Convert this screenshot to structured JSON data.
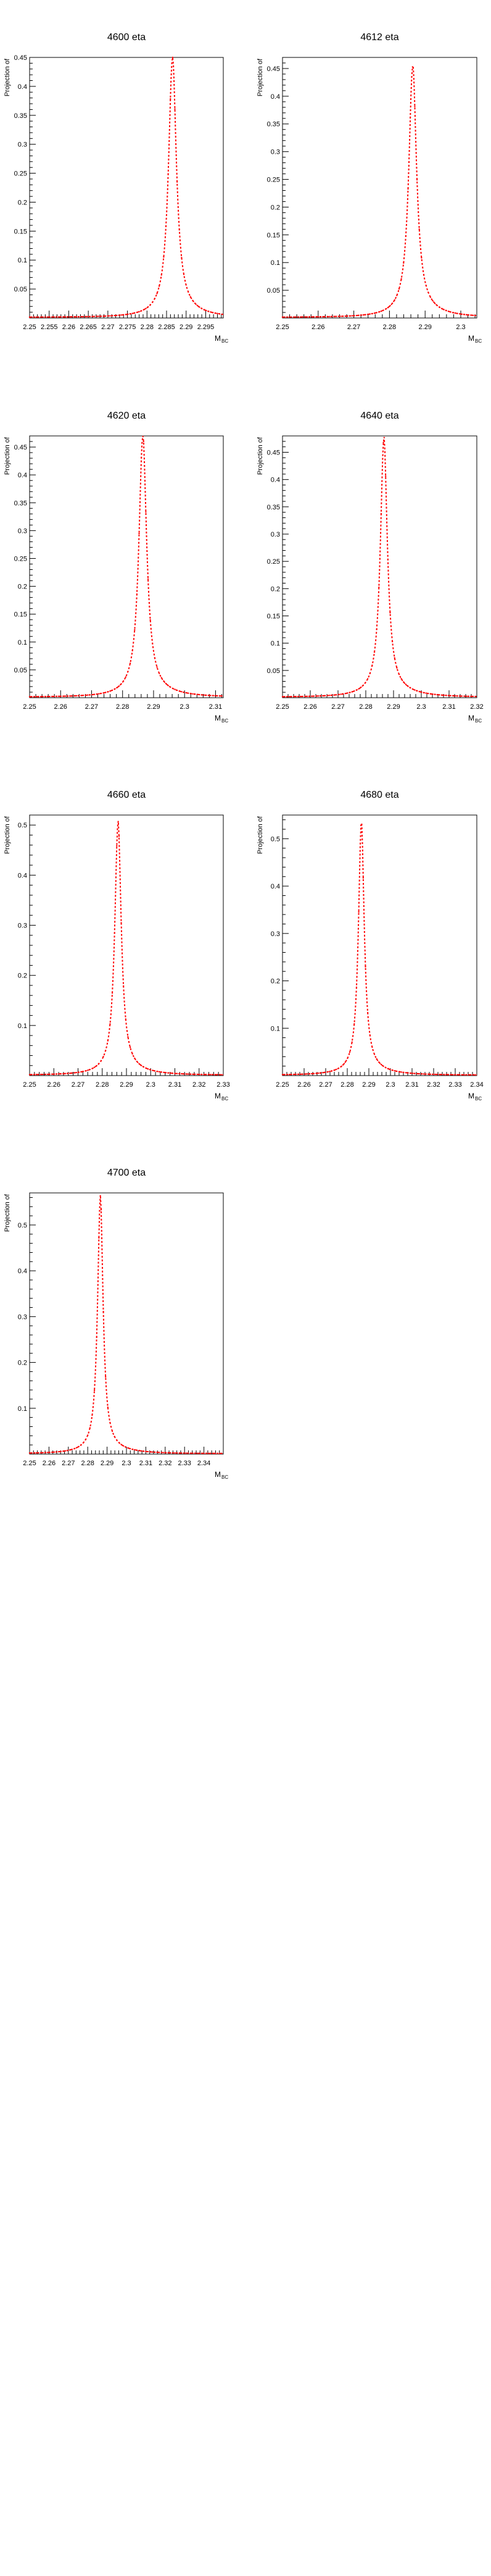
{
  "style": {
    "curve_color": "#ff0000",
    "axis_color": "#000000"
  },
  "chart_data": [
    {
      "type": "line",
      "title": "4600 eta",
      "ylabel": "Projection of",
      "xlabel": "M",
      "xlabel_sub": "BC",
      "xlim": [
        2.25,
        2.2995
      ],
      "ylim": [
        0,
        0.45
      ],
      "xticks": [
        2.25,
        2.255,
        2.26,
        2.265,
        2.27,
        2.275,
        2.28,
        2.285,
        2.29,
        2.295
      ],
      "xtick_labels": [
        "2.25",
        "2.255",
        "2.26",
        "2.265",
        "2.27",
        "2.275",
        "2.28",
        "2.285",
        "2.29",
        "2.295"
      ],
      "yticks": [
        0.05,
        0.1,
        0.15,
        0.2,
        0.25,
        0.3,
        0.35,
        0.4,
        0.45
      ],
      "ytick_labels": [
        "0.05",
        "0.1",
        "0.15",
        "0.2",
        "0.25",
        "0.3",
        "0.35",
        "0.4",
        "0.45"
      ],
      "series": [
        {
          "peak_x": 2.2865,
          "peak_y": 0.435,
          "width": 0.0012,
          "tail": 0.02,
          "tail_decay": 0.005
        }
      ]
    },
    {
      "type": "line",
      "title": "4612 eta",
      "ylabel": "Projection of",
      "xlabel": "M",
      "xlabel_sub": "BC",
      "xlim": [
        2.25,
        2.3045
      ],
      "ylim": [
        0,
        0.47
      ],
      "xticks": [
        2.25,
        2.26,
        2.27,
        2.28,
        2.29,
        2.3
      ],
      "xtick_labels": [
        "2.25",
        "2.26",
        "2.27",
        "2.28",
        "2.29",
        "2.3"
      ],
      "yticks": [
        0.05,
        0.1,
        0.15,
        0.2,
        0.25,
        0.3,
        0.35,
        0.4,
        0.45
      ],
      "ytick_labels": [
        "0.05",
        "0.1",
        "0.15",
        "0.2",
        "0.25",
        "0.3",
        "0.35",
        "0.4",
        "0.45"
      ],
      "series": [
        {
          "peak_x": 2.2865,
          "peak_y": 0.44,
          "width": 0.0013,
          "tail": 0.02,
          "tail_decay": 0.006
        }
      ]
    },
    {
      "type": "line",
      "title": "4620 eta",
      "ylabel": "Projection of",
      "xlabel": "M",
      "xlabel_sub": "BC",
      "xlim": [
        2.25,
        2.3125
      ],
      "ylim": [
        0,
        0.47
      ],
      "xticks": [
        2.25,
        2.26,
        2.27,
        2.28,
        2.29,
        2.3,
        2.31
      ],
      "xtick_labels": [
        "2.25",
        "2.26",
        "2.27",
        "2.28",
        "2.29",
        "2.3",
        "2.31"
      ],
      "yticks": [
        0.05,
        0.1,
        0.15,
        0.2,
        0.25,
        0.3,
        0.35,
        0.4,
        0.45
      ],
      "ytick_labels": [
        "0.05",
        "0.1",
        "0.15",
        "0.2",
        "0.25",
        "0.3",
        "0.35",
        "0.4",
        "0.45"
      ],
      "series": [
        {
          "peak_x": 2.2865,
          "peak_y": 0.455,
          "width": 0.0015,
          "tail": 0.02,
          "tail_decay": 0.007
        }
      ]
    },
    {
      "type": "line",
      "title": "4640 eta",
      "ylabel": "Projection of",
      "xlabel": "M",
      "xlabel_sub": "BC",
      "xlim": [
        2.25,
        2.32
      ],
      "ylim": [
        0,
        0.48
      ],
      "xticks": [
        2.25,
        2.26,
        2.27,
        2.28,
        2.29,
        2.3,
        2.31,
        2.32
      ],
      "xtick_labels": [
        "2.25",
        "2.26",
        "2.27",
        "2.28",
        "2.29",
        "2.3",
        "2.31",
        "2.32"
      ],
      "yticks": [
        0.05,
        0.1,
        0.15,
        0.2,
        0.25,
        0.3,
        0.35,
        0.4,
        0.45
      ],
      "ytick_labels": [
        "0.05",
        "0.1",
        "0.15",
        "0.2",
        "0.25",
        "0.3",
        "0.35",
        "0.4",
        "0.45"
      ],
      "series": [
        {
          "peak_x": 2.2865,
          "peak_y": 0.46,
          "width": 0.0015,
          "tail": 0.02,
          "tail_decay": 0.008
        }
      ]
    },
    {
      "type": "line",
      "title": "4660 eta",
      "ylabel": "Projection of",
      "xlabel": "M",
      "xlabel_sub": "BC",
      "xlim": [
        2.25,
        2.33
      ],
      "ylim": [
        0,
        0.52
      ],
      "xticks": [
        2.25,
        2.26,
        2.27,
        2.28,
        2.29,
        2.3,
        2.31,
        2.32,
        2.33
      ],
      "xtick_labels": [
        "2.25",
        "2.26",
        "2.27",
        "2.28",
        "2.29",
        "2.3",
        "2.31",
        "2.32",
        "2.33"
      ],
      "yticks": [
        0.1,
        0.2,
        0.3,
        0.4,
        0.5
      ],
      "ytick_labels": [
        "0.1",
        "0.2",
        "0.3",
        "0.4",
        "0.5"
      ],
      "series": [
        {
          "peak_x": 2.2865,
          "peak_y": 0.49,
          "width": 0.0016,
          "tail": 0.02,
          "tail_decay": 0.008
        }
      ]
    },
    {
      "type": "line",
      "title": "4680 eta",
      "ylabel": "Projection of",
      "xlabel": "M",
      "xlabel_sub": "BC",
      "xlim": [
        2.25,
        2.34
      ],
      "ylim": [
        0,
        0.55
      ],
      "xticks": [
        2.25,
        2.26,
        2.27,
        2.28,
        2.29,
        2.3,
        2.31,
        2.32,
        2.33,
        2.34
      ],
      "xtick_labels": [
        "2.25",
        "2.26",
        "2.27",
        "2.28",
        "2.29",
        "2.3",
        "2.31",
        "2.32",
        "2.33",
        "2.34"
      ],
      "yticks": [
        0.1,
        0.2,
        0.3,
        0.4,
        0.5
      ],
      "ytick_labels": [
        "0.1",
        "0.2",
        "0.3",
        "0.4",
        "0.5"
      ],
      "series": [
        {
          "peak_x": 2.2865,
          "peak_y": 0.52,
          "width": 0.0016,
          "tail": 0.02,
          "tail_decay": 0.009
        }
      ]
    },
    {
      "type": "line",
      "title": "4700 eta",
      "ylabel": "Projection of",
      "xlabel": "M",
      "xlabel_sub": "BC",
      "xlim": [
        2.25,
        2.35
      ],
      "ylim": [
        0,
        0.57
      ],
      "xticks": [
        2.25,
        2.26,
        2.27,
        2.28,
        2.29,
        2.3,
        2.31,
        2.32,
        2.33,
        2.34
      ],
      "xtick_labels": [
        "2.25",
        "2.26",
        "2.27",
        "2.28",
        "2.29",
        "2.3",
        "2.31",
        "2.32",
        "2.33",
        "2.34"
      ],
      "yticks": [
        0.1,
        0.2,
        0.3,
        0.4,
        0.5
      ],
      "ytick_labels": [
        "0.1",
        "0.2",
        "0.3",
        "0.4",
        "0.5"
      ],
      "series": [
        {
          "peak_x": 2.2865,
          "peak_y": 0.545,
          "width": 0.0017,
          "tail": 0.02,
          "tail_decay": 0.01
        }
      ]
    }
  ]
}
